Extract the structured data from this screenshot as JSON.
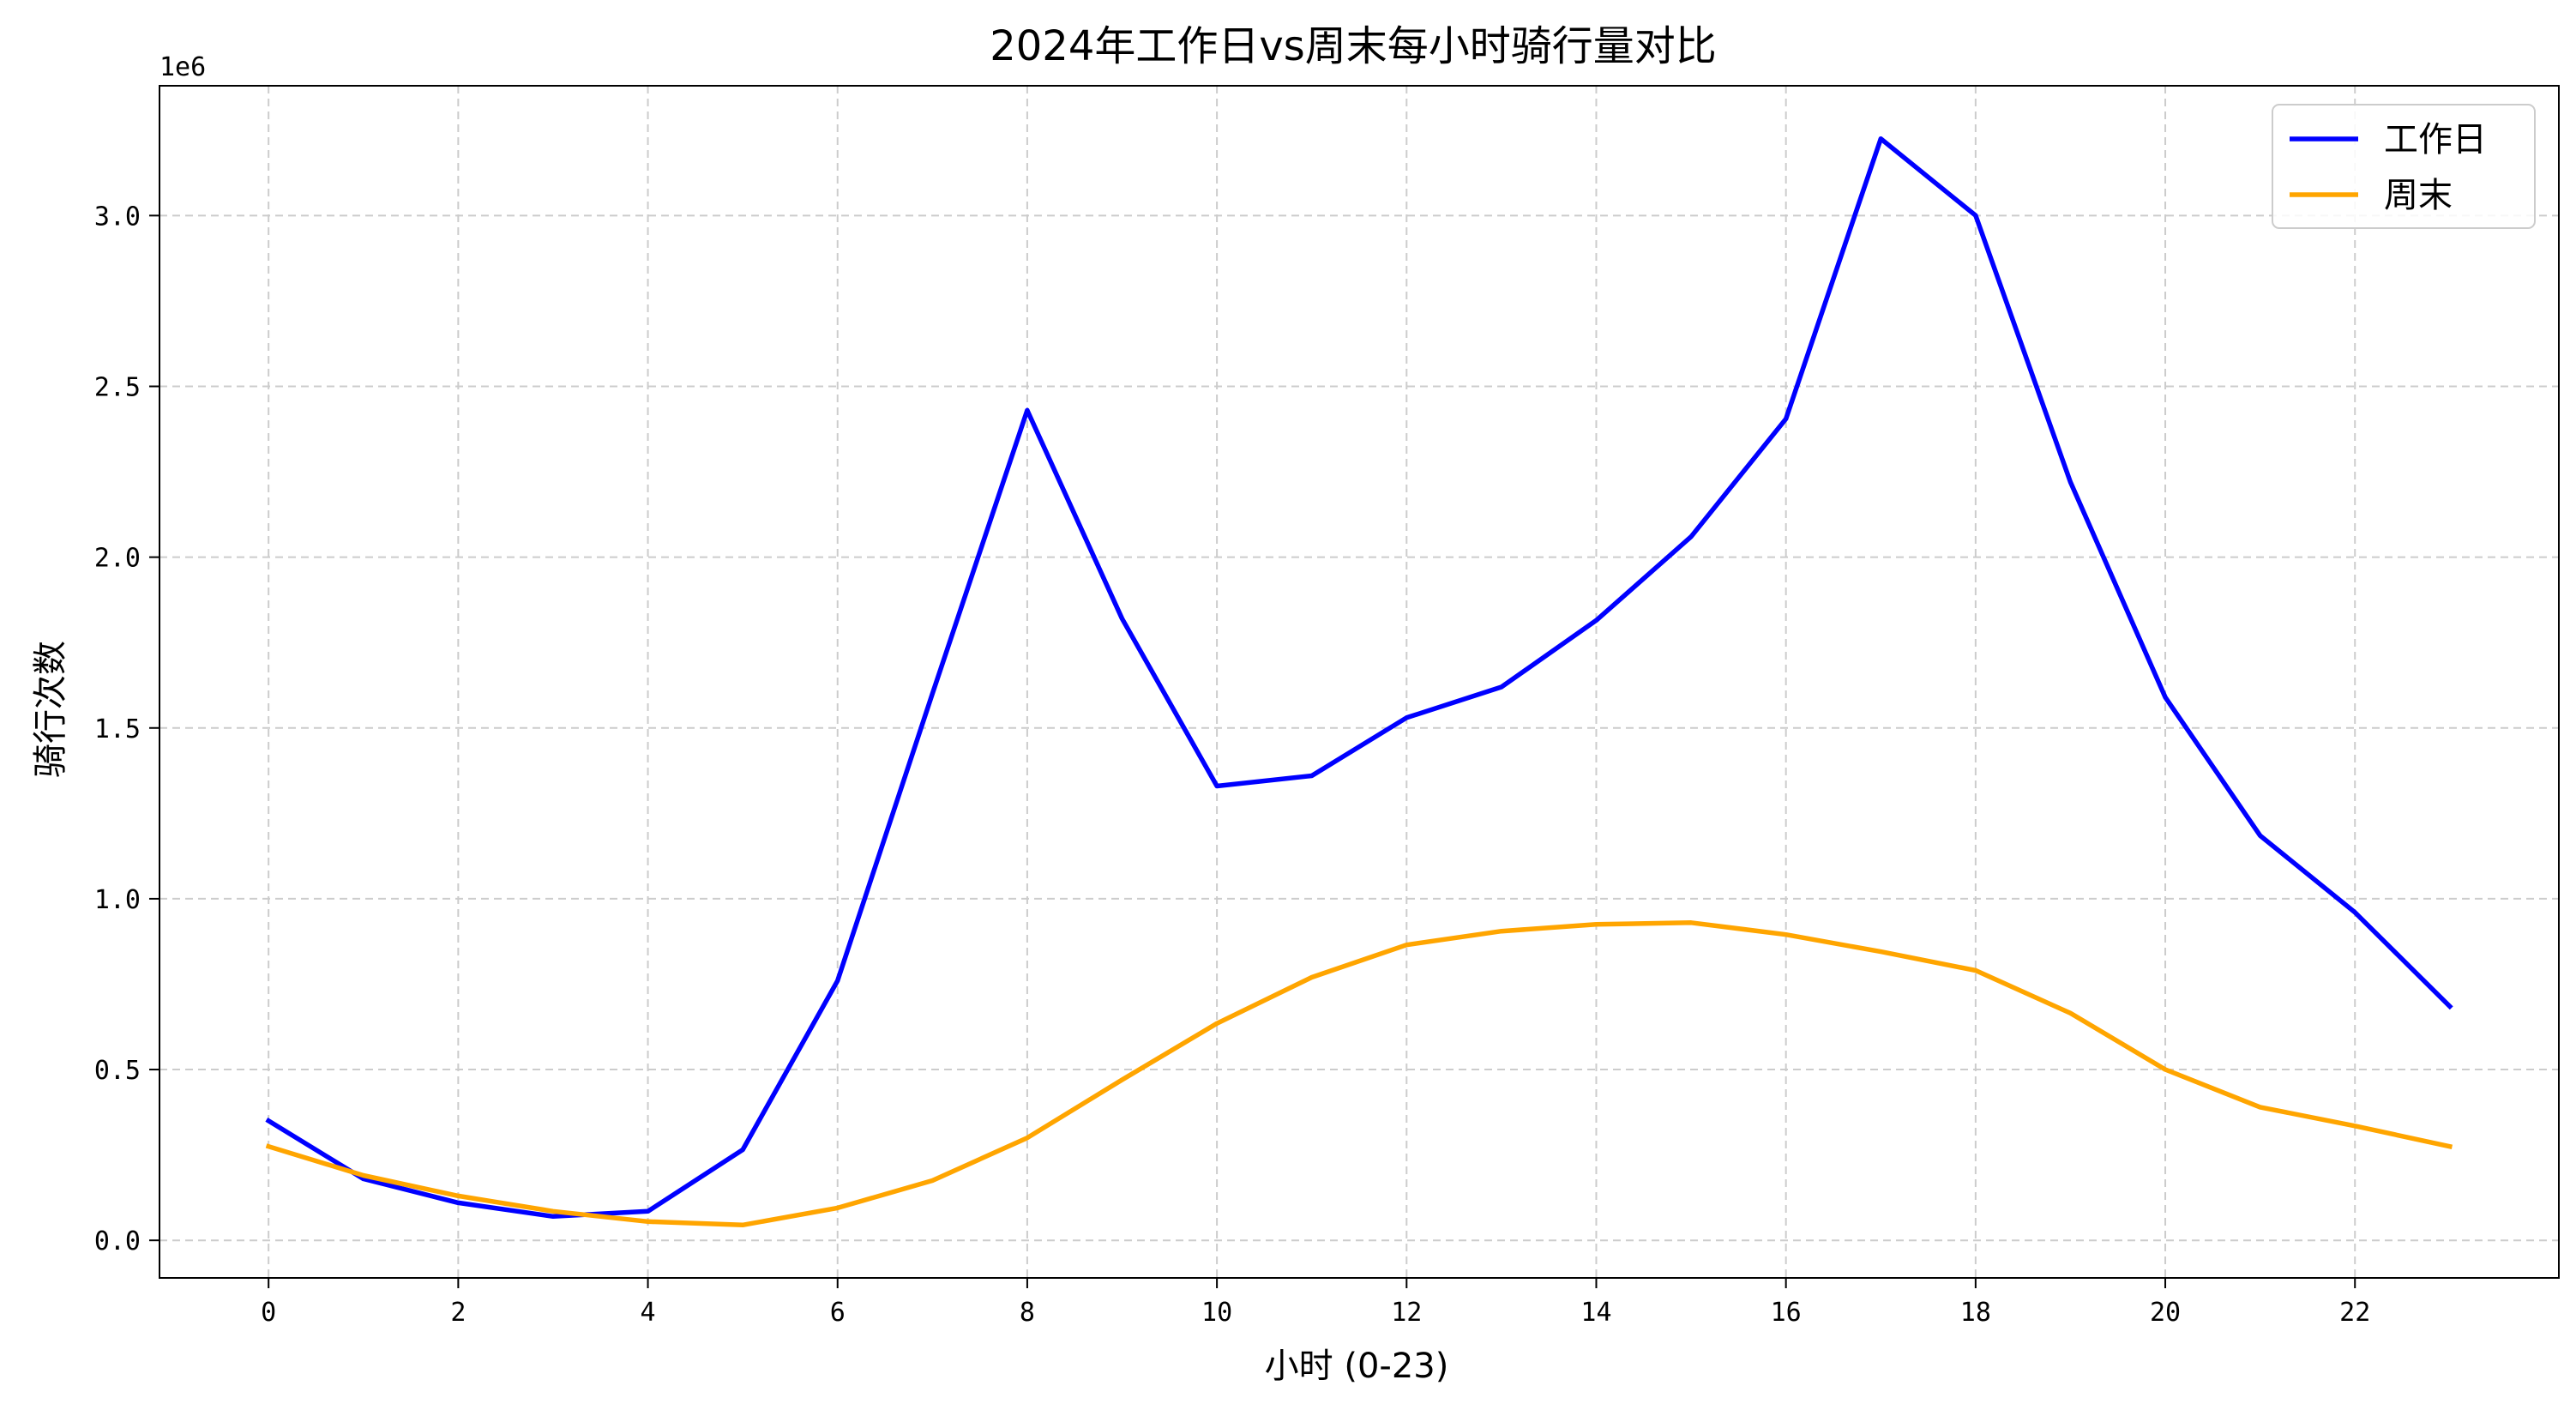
{
  "chart_data": {
    "type": "line",
    "title": "2024年工作日vs周末每小时骑行量对比",
    "xlabel": "小时 (0-23)",
    "ylabel": "骑行次数",
    "y_offset_label": "1e6",
    "x": [
      0,
      1,
      2,
      3,
      4,
      5,
      6,
      7,
      8,
      9,
      10,
      11,
      12,
      13,
      14,
      15,
      16,
      17,
      18,
      19,
      20,
      21,
      22,
      23
    ],
    "xlim": [
      -1.15,
      24.15
    ],
    "ylim": [
      -110000,
      3380000
    ],
    "x_ticks": [
      0,
      2,
      4,
      6,
      8,
      10,
      12,
      14,
      16,
      18,
      20,
      22
    ],
    "x_tick_labels": [
      "0",
      "2",
      "4",
      "6",
      "8",
      "10",
      "12",
      "14",
      "16",
      "18",
      "20",
      "22"
    ],
    "y_ticks": [
      0,
      500000,
      1000000,
      1500000,
      2000000,
      2500000,
      3000000
    ],
    "y_tick_labels": [
      "0.0",
      "0.5",
      "1.0",
      "1.5",
      "2.0",
      "2.5",
      "3.0"
    ],
    "grid": true,
    "legend_position": "top-right",
    "series": [
      {
        "name": "工作日",
        "color": "#0000ff",
        "values": [
          350000,
          180000,
          110000,
          70000,
          85000,
          265000,
          760000,
          1600000,
          2430000,
          1820000,
          1330000,
          1360000,
          1530000,
          1620000,
          1815000,
          2060000,
          2405000,
          3225000,
          3000000,
          2220000,
          1590000,
          1185000,
          960000,
          685000
        ]
      },
      {
        "name": "周末",
        "color": "#ffa500",
        "values": [
          275000,
          190000,
          130000,
          85000,
          55000,
          45000,
          95000,
          175000,
          300000,
          470000,
          635000,
          770000,
          865000,
          905000,
          925000,
          930000,
          895000,
          845000,
          790000,
          665000,
          500000,
          390000,
          335000,
          275000
        ]
      }
    ]
  }
}
